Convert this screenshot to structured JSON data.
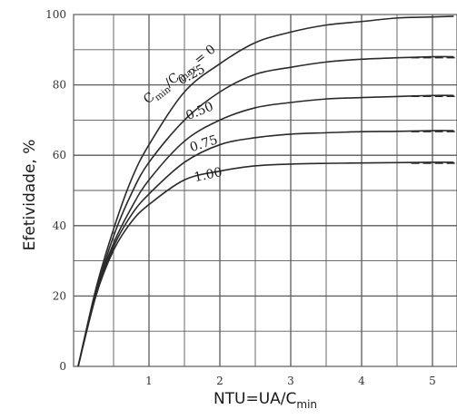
{
  "chart_data": {
    "type": "line",
    "title": "",
    "xlabel": "NTU=UA/",
    "xlabel_sub_text": "C",
    "xlabel_sub": "min",
    "ylabel": "Efetividade, %",
    "xlim": [
      0,
      5.3
    ],
    "ylim": [
      0,
      100
    ],
    "x_ticks": [
      "1",
      "2",
      "3",
      "4",
      "5"
    ],
    "y_ticks": [
      "0",
      "20",
      "40",
      "60",
      "80",
      "100"
    ],
    "grid": "on",
    "x_grid_step": 0.5,
    "y_grid_step": 10,
    "curve_label_prefix_c1": "C",
    "curve_label_sub1": "min",
    "curve_label_slash": "/C",
    "curve_label_sub2": "max",
    "series": [
      {
        "name": "0",
        "label": " = 0",
        "ratio": 0,
        "asymptote": 100,
        "x": [
          0,
          0.25,
          0.5,
          0.75,
          1,
          1.5,
          2,
          2.5,
          3,
          3.5,
          4,
          4.5,
          5,
          5.3
        ],
        "y": [
          0,
          22,
          39,
          53,
          63,
          78,
          86,
          92,
          95,
          97,
          98,
          99,
          99.3,
          99.5
        ]
      },
      {
        "name": "0.25",
        "label": "0.25",
        "ratio": 0.25,
        "asymptote": 88,
        "x": [
          0,
          0.25,
          0.5,
          0.75,
          1,
          1.5,
          2,
          2.5,
          3,
          3.5,
          4,
          4.5,
          5,
          5.3
        ],
        "y": [
          0,
          21,
          37,
          49,
          58,
          70,
          78,
          83,
          85,
          86.5,
          87.3,
          87.7,
          88,
          88
        ]
      },
      {
        "name": "0.50",
        "label": "0.50",
        "ratio": 0.5,
        "asymptote": 77,
        "x": [
          0,
          0.25,
          0.5,
          0.75,
          1,
          1.5,
          2,
          2.5,
          3,
          3.5,
          4,
          4.5,
          5,
          5.3
        ],
        "y": [
          0,
          21,
          35,
          45,
          53,
          64,
          70,
          73.5,
          75,
          76,
          76.4,
          76.7,
          77,
          77
        ]
      },
      {
        "name": "0.75",
        "label": "0.75",
        "ratio": 0.75,
        "asymptote": 67,
        "x": [
          0,
          0.25,
          0.5,
          0.75,
          1,
          1.5,
          2,
          2.5,
          3,
          3.5,
          4,
          4.5,
          5,
          5.3
        ],
        "y": [
          0,
          20,
          34,
          43,
          49,
          58,
          63,
          65,
          66,
          66.4,
          66.7,
          66.8,
          67,
          67
        ]
      },
      {
        "name": "1.00",
        "label": "1.00",
        "ratio": 1.0,
        "asymptote": 58,
        "x": [
          0,
          0.25,
          0.5,
          0.75,
          1,
          1.5,
          2,
          2.5,
          3,
          3.5,
          4,
          4.5,
          5,
          5.3
        ],
        "y": [
          0,
          20,
          33,
          41,
          46,
          53,
          55.5,
          57,
          57.5,
          57.7,
          57.8,
          57.9,
          58,
          58
        ]
      }
    ],
    "colors": {
      "curve": "#2a2a2a",
      "grid": "#5a5a5a",
      "background": "#ffffff"
    }
  }
}
